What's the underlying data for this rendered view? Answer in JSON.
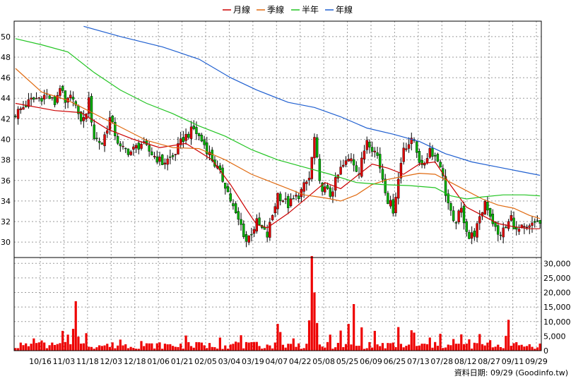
{
  "chart_data": [
    {
      "type": "candlestick",
      "legend": [
        {
          "label": "月線",
          "color": "#cc0000"
        },
        {
          "label": "季線",
          "color": "#e06a10"
        },
        {
          "label": "半年",
          "color": "#22c422"
        },
        {
          "label": "年線",
          "color": "#1f5fd0"
        }
      ],
      "x_tick_labels": [
        "10/16",
        "11/03",
        "11/18",
        "12/03",
        "12/18",
        "01/06",
        "01/21",
        "02/05",
        "03/04",
        "03/19",
        "04/07",
        "04/22",
        "05/08",
        "05/25",
        "06/09",
        "06/25",
        "07/13",
        "07/28",
        "08/12",
        "08/27",
        "09/11",
        "09/29"
      ],
      "y_tick_labels": [
        "30",
        "32",
        "34",
        "36",
        "38",
        "40",
        "42",
        "44",
        "46",
        "48",
        "50"
      ],
      "ylim": [
        28.5,
        51.5
      ],
      "price_anchors": [
        [
          0,
          42.5
        ],
        [
          6,
          43.8
        ],
        [
          12,
          44.3
        ],
        [
          15,
          43.5
        ],
        [
          17,
          45.2
        ],
        [
          19,
          43.4
        ],
        [
          22,
          44.3
        ],
        [
          24,
          42.1
        ],
        [
          26,
          41.9
        ],
        [
          28,
          43.7
        ],
        [
          30,
          40.2
        ],
        [
          33,
          39.6
        ],
        [
          36,
          42.0
        ],
        [
          40,
          39.1
        ],
        [
          44,
          38.8
        ],
        [
          48,
          39.6
        ],
        [
          52,
          38.6
        ],
        [
          56,
          37.7
        ],
        [
          60,
          38.3
        ],
        [
          64,
          40.1
        ],
        [
          68,
          41.0
        ],
        [
          72,
          39.5
        ],
        [
          76,
          37.6
        ],
        [
          80,
          35.6
        ],
        [
          84,
          32.6
        ],
        [
          86,
          31.6
        ],
        [
          88,
          30.1
        ],
        [
          92,
          31.9
        ],
        [
          96,
          30.6
        ],
        [
          100,
          34.7
        ],
        [
          104,
          33.6
        ],
        [
          108,
          34.6
        ],
        [
          112,
          36.2
        ],
        [
          114,
          40.1
        ],
        [
          116,
          35.6
        ],
        [
          120,
          34.6
        ],
        [
          124,
          37.1
        ],
        [
          128,
          38.3
        ],
        [
          131,
          36.7
        ],
        [
          134,
          40.1
        ],
        [
          138,
          38.4
        ],
        [
          142,
          34.1
        ],
        [
          144,
          33.2
        ],
        [
          146,
          36.1
        ],
        [
          148,
          39.3
        ],
        [
          152,
          39.9
        ],
        [
          155,
          37.1
        ],
        [
          158,
          39.1
        ],
        [
          162,
          37.6
        ],
        [
          164,
          34.8
        ],
        [
          167,
          31.7
        ],
        [
          170,
          33.1
        ],
        [
          173,
          30.4
        ],
        [
          175,
          30.9
        ],
        [
          177,
          32.1
        ],
        [
          179,
          34.0
        ],
        [
          181,
          32.7
        ],
        [
          184,
          30.6
        ],
        [
          187,
          31.4
        ],
        [
          189,
          32.4
        ],
        [
          191,
          31.0
        ],
        [
          193,
          31.3
        ],
        [
          195,
          31.2
        ],
        [
          197,
          31.6
        ],
        [
          199,
          32.1
        ],
        [
          200,
          31.7
        ]
      ],
      "moving_averages": [
        {
          "name": "月線",
          "color": "#cc0000",
          "points": [
            [
              0,
              43.5
            ],
            [
              15,
              42.8
            ],
            [
              25,
              42.6
            ],
            [
              35,
              41.0
            ],
            [
              45,
              40.0
            ],
            [
              55,
              39.2
            ],
            [
              65,
              39.6
            ],
            [
              75,
              38.0
            ],
            [
              82,
              35.6
            ],
            [
              88,
              33.2
            ],
            [
              92,
              31.7
            ],
            [
              96,
              31.4
            ],
            [
              104,
              32.8
            ],
            [
              112,
              34.5
            ],
            [
              118,
              35.8
            ],
            [
              124,
              35.2
            ],
            [
              130,
              36.4
            ],
            [
              136,
              37.6
            ],
            [
              142,
              37.2
            ],
            [
              148,
              36.6
            ],
            [
              154,
              37.6
            ],
            [
              160,
              37.8
            ],
            [
              166,
              35.5
            ],
            [
              172,
              33.4
            ],
            [
              178,
              32.6
            ],
            [
              184,
              31.8
            ],
            [
              190,
              31.5
            ],
            [
              196,
              31.3
            ],
            [
              200,
              31.3
            ]
          ]
        },
        {
          "name": "季線",
          "color": "#e06a10",
          "points": [
            [
              0,
              46.9
            ],
            [
              10,
              44.6
            ],
            [
              20,
              43.8
            ],
            [
              30,
              42.5
            ],
            [
              40,
              41.2
            ],
            [
              50,
              39.9
            ],
            [
              60,
              39.2
            ],
            [
              70,
              39.1
            ],
            [
              80,
              38.0
            ],
            [
              90,
              36.6
            ],
            [
              100,
              35.6
            ],
            [
              110,
              34.6
            ],
            [
              118,
              34.3
            ],
            [
              124,
              34.0
            ],
            [
              130,
              34.6
            ],
            [
              136,
              35.6
            ],
            [
              142,
              36.1
            ],
            [
              148,
              36.4
            ],
            [
              154,
              36.7
            ],
            [
              160,
              36.6
            ],
            [
              166,
              35.8
            ],
            [
              172,
              35.0
            ],
            [
              178,
              34.2
            ],
            [
              184,
              33.6
            ],
            [
              190,
              33.3
            ],
            [
              196,
              32.6
            ],
            [
              200,
              32.3
            ]
          ]
        },
        {
          "name": "半年",
          "color": "#22c422",
          "points": [
            [
              0,
              49.8
            ],
            [
              10,
              49.2
            ],
            [
              20,
              48.5
            ],
            [
              30,
              46.5
            ],
            [
              40,
              44.8
            ],
            [
              50,
              43.5
            ],
            [
              60,
              42.5
            ],
            [
              70,
              41.3
            ],
            [
              80,
              40.3
            ],
            [
              90,
              39.0
            ],
            [
              100,
              38.0
            ],
            [
              110,
              37.3
            ],
            [
              120,
              36.6
            ],
            [
              130,
              35.8
            ],
            [
              140,
              35.6
            ],
            [
              150,
              35.5
            ],
            [
              160,
              35.3
            ],
            [
              166,
              34.5
            ],
            [
              172,
              34.2
            ],
            [
              178,
              34.4
            ],
            [
              186,
              34.6
            ],
            [
              194,
              34.6
            ],
            [
              200,
              34.5
            ]
          ]
        },
        {
          "name": "年線",
          "color": "#1f5fd0",
          "points": [
            [
              26,
              51.0
            ],
            [
              40,
              50.0
            ],
            [
              56,
              49.0
            ],
            [
              70,
              47.8
            ],
            [
              82,
              46.0
            ],
            [
              92,
              44.8
            ],
            [
              104,
              43.6
            ],
            [
              114,
              43.1
            ],
            [
              124,
              42.2
            ],
            [
              134,
              41.1
            ],
            [
              144,
              40.5
            ],
            [
              154,
              39.8
            ],
            [
              164,
              38.6
            ],
            [
              174,
              37.8
            ],
            [
              184,
              37.3
            ],
            [
              194,
              36.8
            ],
            [
              200,
              36.5
            ]
          ]
        }
      ],
      "y2lim": [
        0,
        32000
      ],
      "y2_tick_labels": [
        "0",
        "5,000",
        "10,000",
        "15,000",
        "20,000",
        "25,000",
        "30,000"
      ],
      "volume_spikes": [
        [
          7,
          4200
        ],
        [
          10,
          3500
        ],
        [
          18,
          6800
        ],
        [
          20,
          5500
        ],
        [
          22,
          7500
        ],
        [
          23,
          17000
        ],
        [
          24,
          4800
        ],
        [
          27,
          6000
        ],
        [
          40,
          3800
        ],
        [
          48,
          3300
        ],
        [
          65,
          5200
        ],
        [
          70,
          2900
        ],
        [
          78,
          4500
        ],
        [
          84,
          3100
        ],
        [
          86,
          5300
        ],
        [
          92,
          3000
        ],
        [
          100,
          9200
        ],
        [
          101,
          6400
        ],
        [
          106,
          4200
        ],
        [
          112,
          10400
        ],
        [
          113,
          32500
        ],
        [
          114,
          20000
        ],
        [
          115,
          9500
        ],
        [
          120,
          5500
        ],
        [
          124,
          6900
        ],
        [
          127,
          9200
        ],
        [
          129,
          16000
        ],
        [
          132,
          8000
        ],
        [
          137,
          6800
        ],
        [
          146,
          8100
        ],
        [
          151,
          7000
        ],
        [
          152,
          6200
        ],
        [
          158,
          4500
        ],
        [
          162,
          5800
        ],
        [
          167,
          4000
        ],
        [
          170,
          5600
        ],
        [
          173,
          3900
        ],
        [
          177,
          5700
        ],
        [
          181,
          3600
        ],
        [
          187,
          5100
        ],
        [
          188,
          10600
        ],
        [
          195,
          1600
        ]
      ],
      "footer": "資料日期: 09/29 (Goodinfo.tw)"
    }
  ]
}
